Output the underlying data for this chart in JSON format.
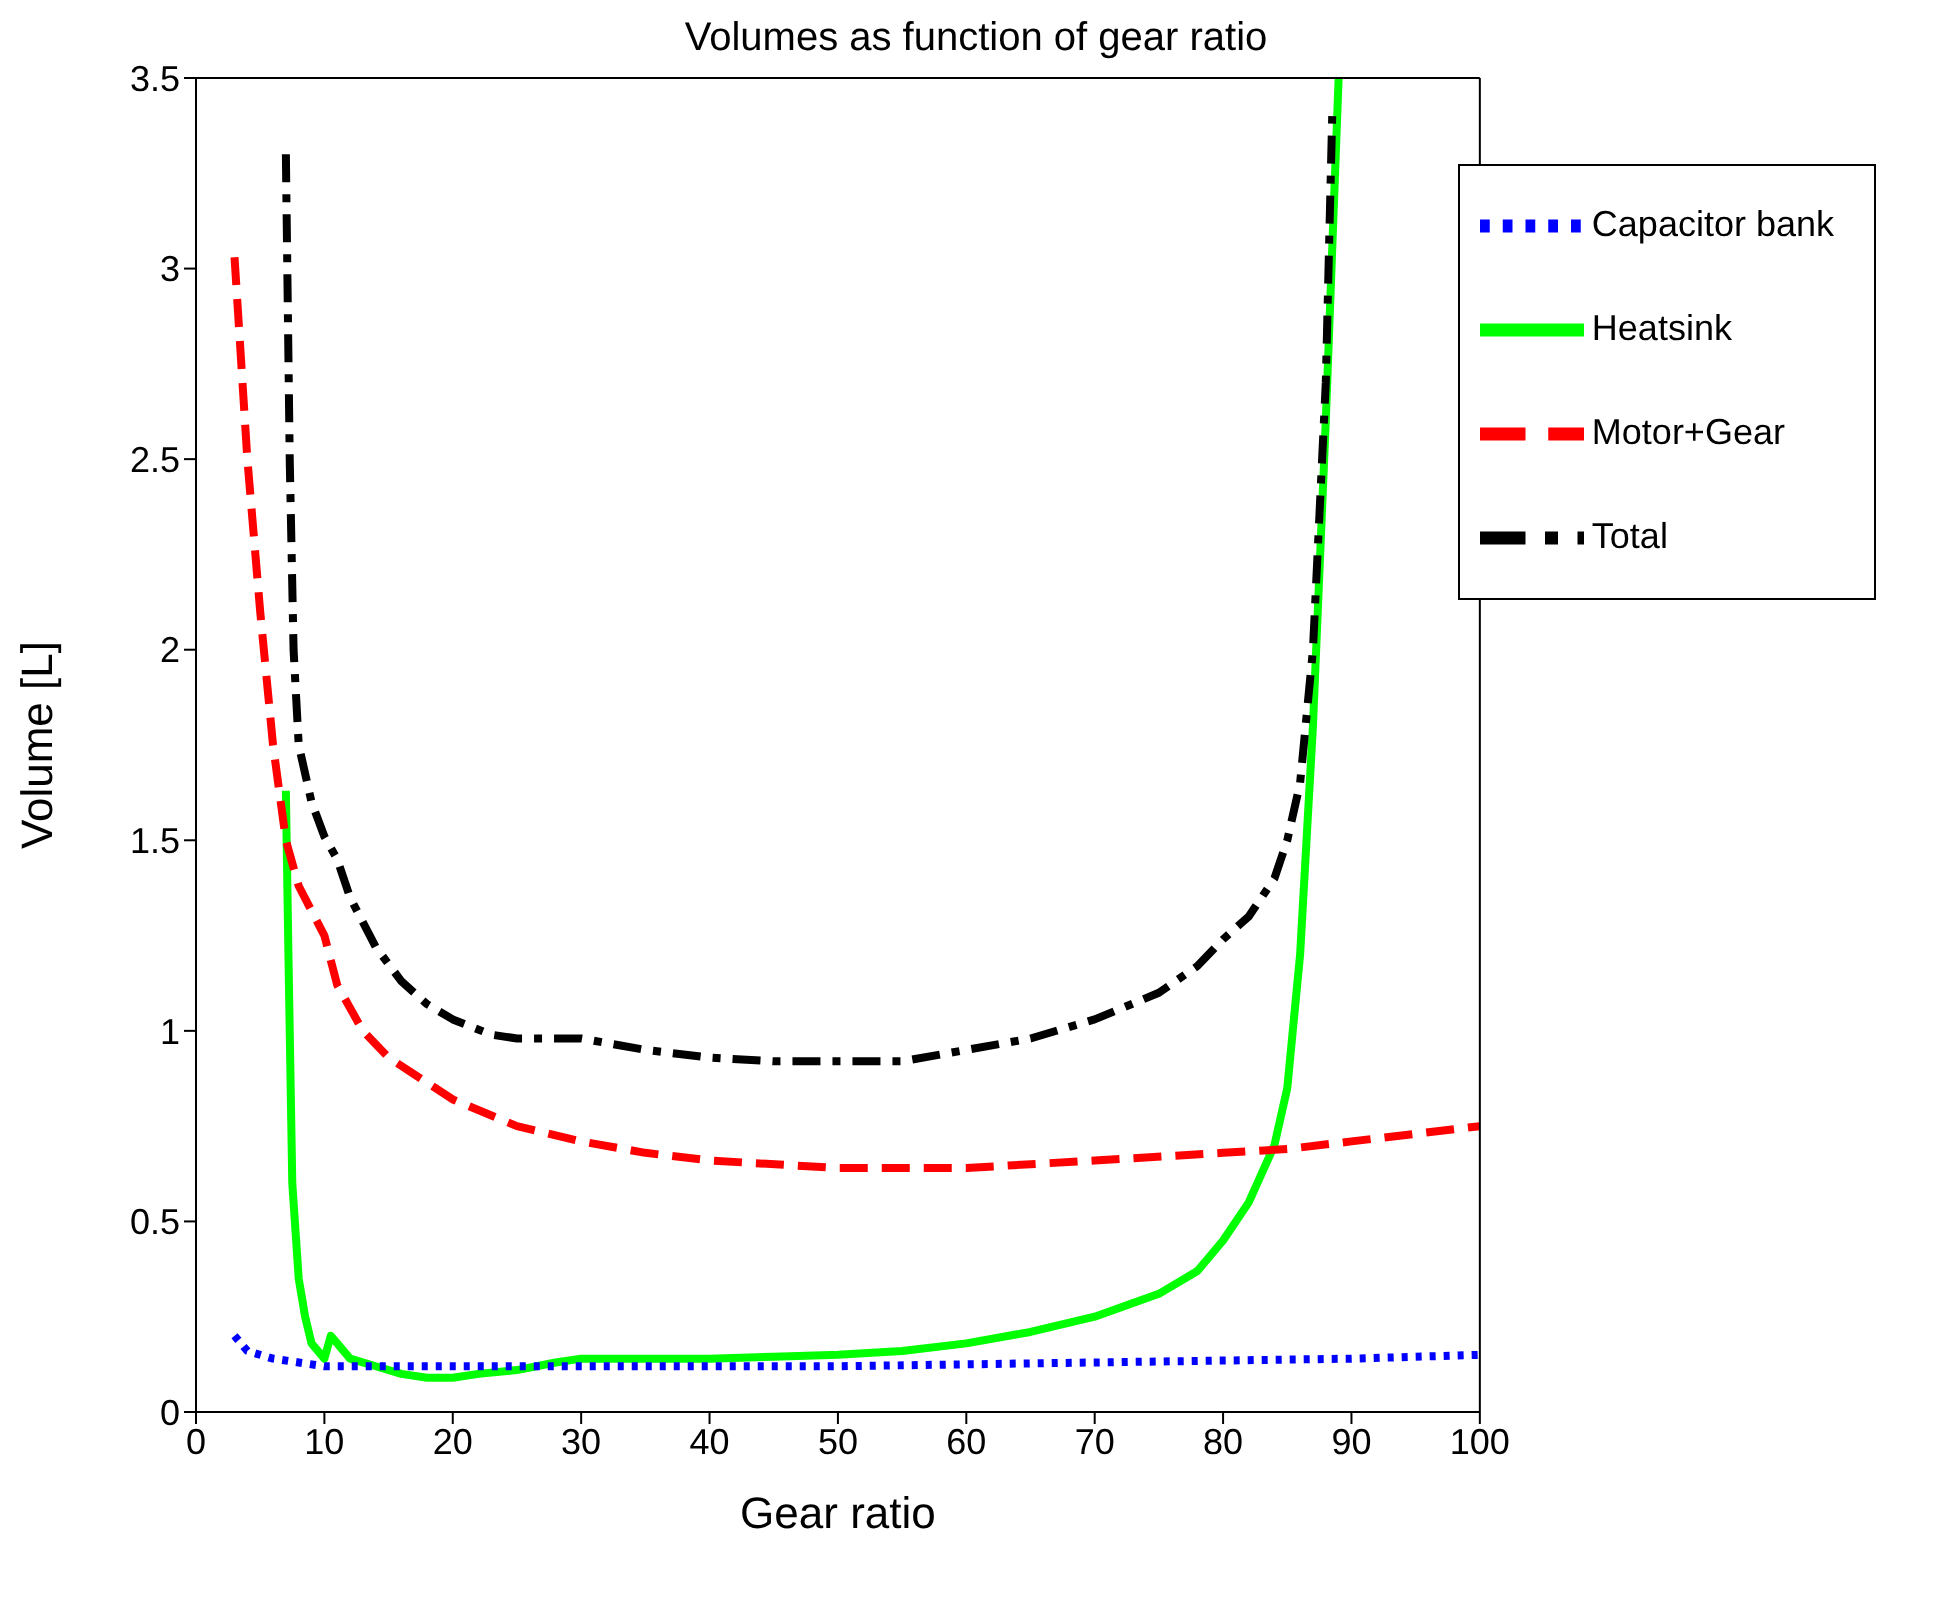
{
  "chart_data": {
    "type": "line",
    "title": "Volumes as function of gear ratio",
    "xlabel": "Gear ratio",
    "ylabel": "Volume [L]",
    "xlim": [
      0,
      100
    ],
    "xticks": [
      0,
      10,
      20,
      30,
      40,
      50,
      60,
      70,
      80,
      90,
      100
    ],
    "ylim": [
      0,
      3.5
    ],
    "yticks": [
      0,
      0.5,
      1,
      1.5,
      2,
      2.5,
      3,
      3.5
    ],
    "grid": false,
    "legend": "top right",
    "marker": "none",
    "series": [
      {
        "name": "Heatsink",
        "color": "#00ff00",
        "line_style": "solid",
        "x": [
          7,
          7.2,
          7.5,
          8,
          8.5,
          9,
          10,
          10.5,
          11,
          12,
          14,
          16,
          18,
          20,
          22,
          25,
          28,
          30,
          35,
          40,
          45,
          50,
          55,
          60,
          65,
          70,
          75,
          78,
          80,
          82,
          84,
          85,
          86,
          87,
          88,
          89
        ],
        "values": [
          1.63,
          1.2,
          0.6,
          0.35,
          0.25,
          0.18,
          0.14,
          0.2,
          0.18,
          0.14,
          0.12,
          0.1,
          0.09,
          0.09,
          0.1,
          0.11,
          0.13,
          0.14,
          0.14,
          0.14,
          0.145,
          0.15,
          0.16,
          0.18,
          0.21,
          0.25,
          0.31,
          0.37,
          0.45,
          0.55,
          0.7,
          0.85,
          1.2,
          1.8,
          2.6,
          3.5
        ]
      },
      {
        "name": "Capacitor bank",
        "color": "#0000ff",
        "line_style": "dotted",
        "x": [
          3,
          4,
          6,
          8,
          10,
          15,
          20,
          30,
          40,
          50,
          60,
          70,
          80,
          90,
          100
        ],
        "values": [
          0.2,
          0.16,
          0.14,
          0.13,
          0.12,
          0.12,
          0.12,
          0.12,
          0.12,
          0.12,
          0.125,
          0.13,
          0.135,
          0.14,
          0.15
        ]
      },
      {
        "name": "Motor+Gear",
        "color": "#ff0000",
        "line_style": "dashed",
        "x": [
          3,
          4,
          5,
          6,
          7,
          8,
          10,
          11,
          13,
          15,
          20,
          25,
          30,
          35,
          40,
          50,
          60,
          70,
          80,
          85,
          90,
          100
        ],
        "values": [
          3.03,
          2.5,
          2.1,
          1.75,
          1.5,
          1.38,
          1.25,
          1.12,
          1.0,
          0.93,
          0.82,
          0.75,
          0.71,
          0.68,
          0.66,
          0.64,
          0.64,
          0.66,
          0.68,
          0.69,
          0.71,
          0.75
        ]
      },
      {
        "name": "Total",
        "color": "#000000",
        "line_style": "dashdot",
        "x": [
          7,
          7.3,
          7.6,
          8,
          9,
          10,
          11,
          12,
          14,
          16,
          18,
          20,
          23,
          25,
          30,
          35,
          40,
          45,
          50,
          55,
          60,
          65,
          70,
          75,
          78,
          80,
          82,
          84,
          85,
          86,
          87,
          88,
          88.5
        ],
        "values": [
          3.3,
          2.5,
          2.0,
          1.75,
          1.6,
          1.51,
          1.45,
          1.35,
          1.22,
          1.13,
          1.07,
          1.03,
          0.99,
          0.98,
          0.98,
          0.95,
          0.93,
          0.92,
          0.92,
          0.92,
          0.95,
          0.98,
          1.03,
          1.1,
          1.17,
          1.24,
          1.3,
          1.4,
          1.5,
          1.65,
          2.0,
          2.7,
          3.4
        ]
      }
    ]
  }
}
